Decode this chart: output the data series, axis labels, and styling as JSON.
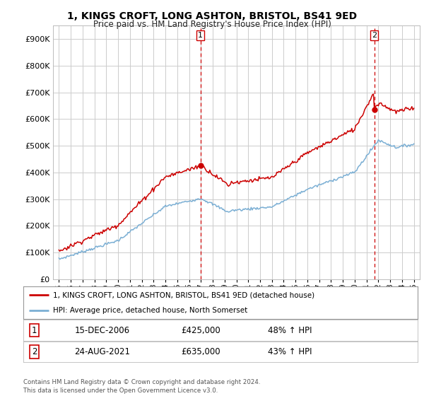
{
  "title": "1, KINGS CROFT, LONG ASHTON, BRISTOL, BS41 9ED",
  "subtitle": "Price paid vs. HM Land Registry's House Price Index (HPI)",
  "legend_line1": "1, KINGS CROFT, LONG ASHTON, BRISTOL, BS41 9ED (detached house)",
  "legend_line2": "HPI: Average price, detached house, North Somerset",
  "sale1_label": "1",
  "sale1_date": "15-DEC-2006",
  "sale1_price": "£425,000",
  "sale1_hpi": "48% ↑ HPI",
  "sale2_label": "2",
  "sale2_date": "24-AUG-2021",
  "sale2_price": "£635,000",
  "sale2_hpi": "43% ↑ HPI",
  "footer": "Contains HM Land Registry data © Crown copyright and database right 2024.\nThis data is licensed under the Open Government Licence v3.0.",
  "price_line_color": "#cc0000",
  "hpi_line_color": "#7bafd4",
  "sale_marker_color": "#cc0000",
  "dashed_line_color": "#cc0000",
  "background_color": "#ffffff",
  "grid_color": "#cccccc",
  "ylim": [
    0,
    950000
  ],
  "yticks": [
    0,
    100000,
    200000,
    300000,
    400000,
    500000,
    600000,
    700000,
    800000,
    900000
  ],
  "sale1_x": 2006.96,
  "sale1_y": 425000,
  "sale2_x": 2021.65,
  "sale2_y": 635000,
  "xmin": 1994.5,
  "xmax": 2025.5
}
